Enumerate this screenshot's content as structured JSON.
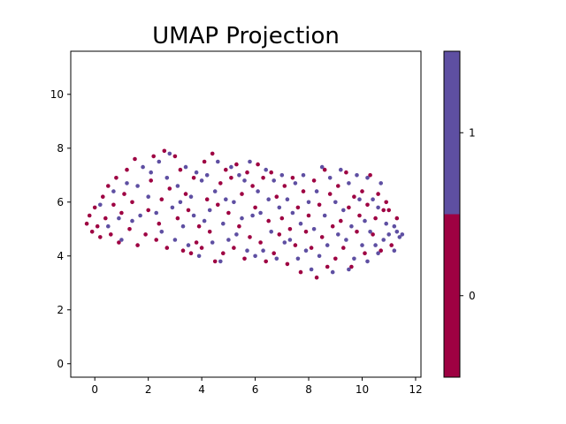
{
  "chart_data": {
    "type": "scatter",
    "title": "UMAP Projection",
    "xlabel": "",
    "ylabel": "",
    "xlim": [
      -0.9,
      12.2
    ],
    "ylim": [
      -0.5,
      11.6
    ],
    "xticks": [
      0,
      2,
      4,
      6,
      8,
      10,
      12
    ],
    "yticks": [
      0,
      2,
      4,
      6,
      8,
      10
    ],
    "grid": false,
    "marker_size": 2.3,
    "colors": {
      "0": "#9e0142",
      "1": "#5e4fa2"
    },
    "colorbar": {
      "ticks": [
        "0",
        "1"
      ],
      "range": [
        -0.5,
        1.5
      ],
      "bands": [
        {
          "label": "0",
          "from": -0.5,
          "to": 0.5,
          "color": "#9e0142"
        },
        {
          "label": "1",
          "from": 0.5,
          "to": 1.5,
          "color": "#5e4fa2"
        }
      ]
    },
    "points": [
      [
        -0.3,
        5.2,
        0
      ],
      [
        -0.2,
        5.5,
        0
      ],
      [
        -0.1,
        4.9,
        0
      ],
      [
        0.0,
        5.8,
        0
      ],
      [
        0.1,
        5.1,
        0
      ],
      [
        0.2,
        4.7,
        0
      ],
      [
        0.3,
        6.2,
        0
      ],
      [
        0.4,
        5.4,
        0
      ],
      [
        0.5,
        6.6,
        0
      ],
      [
        0.6,
        4.8,
        0
      ],
      [
        0.7,
        5.9,
        0
      ],
      [
        0.8,
        6.9,
        0
      ],
      [
        0.9,
        4.5,
        0
      ],
      [
        1.0,
        5.6,
        0
      ],
      [
        1.1,
        6.3,
        0
      ],
      [
        1.2,
        7.2,
        0
      ],
      [
        1.3,
        5.0,
        0
      ],
      [
        1.4,
        6.0,
        0
      ],
      [
        1.5,
        7.6,
        0
      ],
      [
        1.6,
        4.4,
        0
      ],
      [
        0.2,
        5.9,
        1
      ],
      [
        0.5,
        5.1,
        1
      ],
      [
        0.7,
        6.4,
        1
      ],
      [
        0.9,
        5.4,
        1
      ],
      [
        1.0,
        4.6,
        1
      ],
      [
        1.2,
        6.7,
        1
      ],
      [
        1.4,
        5.3,
        1
      ],
      [
        1.6,
        6.6,
        1
      ],
      [
        1.7,
        5.5,
        1
      ],
      [
        1.8,
        7.3,
        1
      ],
      [
        1.9,
        4.8,
        0
      ],
      [
        2.0,
        5.7,
        0
      ],
      [
        2.1,
        6.8,
        0
      ],
      [
        2.2,
        7.7,
        0
      ],
      [
        2.3,
        4.6,
        0
      ],
      [
        2.4,
        5.2,
        0
      ],
      [
        2.5,
        6.1,
        0
      ],
      [
        2.6,
        7.9,
        0
      ],
      [
        2.7,
        4.3,
        0
      ],
      [
        2.8,
        6.5,
        0
      ],
      [
        2.0,
        6.2,
        1
      ],
      [
        2.1,
        7.1,
        1
      ],
      [
        2.3,
        5.6,
        1
      ],
      [
        2.4,
        7.5,
        1
      ],
      [
        2.5,
        4.9,
        1
      ],
      [
        2.7,
        6.9,
        1
      ],
      [
        2.8,
        7.8,
        1
      ],
      [
        2.9,
        5.8,
        1
      ],
      [
        3.0,
        4.6,
        1
      ],
      [
        3.1,
        6.6,
        1
      ],
      [
        3.0,
        7.7,
        0
      ],
      [
        3.1,
        5.4,
        0
      ],
      [
        3.2,
        7.2,
        0
      ],
      [
        3.3,
        4.2,
        0
      ],
      [
        3.4,
        6.3,
        0
      ],
      [
        3.5,
        5.7,
        0
      ],
      [
        3.6,
        4.1,
        0
      ],
      [
        3.7,
        6.9,
        0
      ],
      [
        3.8,
        4.5,
        0
      ],
      [
        3.9,
        5.1,
        0
      ],
      [
        3.2,
        6.0,
        1
      ],
      [
        3.3,
        5.1,
        1
      ],
      [
        3.4,
        7.3,
        1
      ],
      [
        3.5,
        4.4,
        1
      ],
      [
        3.6,
        6.2,
        1
      ],
      [
        3.7,
        5.5,
        1
      ],
      [
        3.8,
        7.1,
        1
      ],
      [
        3.9,
        4.0,
        1
      ],
      [
        4.0,
        6.8,
        1
      ],
      [
        4.1,
        5.3,
        1
      ],
      [
        4.0,
        4.3,
        0
      ],
      [
        4.1,
        7.5,
        0
      ],
      [
        4.2,
        6.1,
        0
      ],
      [
        4.3,
        4.9,
        0
      ],
      [
        4.4,
        7.8,
        0
      ],
      [
        4.5,
        3.8,
        0
      ],
      [
        4.6,
        5.9,
        0
      ],
      [
        4.7,
        6.7,
        0
      ],
      [
        4.8,
        4.1,
        0
      ],
      [
        4.9,
        7.2,
        0
      ],
      [
        4.2,
        7.0,
        1
      ],
      [
        4.3,
        5.7,
        1
      ],
      [
        4.4,
        4.5,
        1
      ],
      [
        4.5,
        6.4,
        1
      ],
      [
        4.6,
        7.5,
        1
      ],
      [
        4.7,
        3.8,
        1
      ],
      [
        4.8,
        5.2,
        1
      ],
      [
        4.9,
        6.1,
        1
      ],
      [
        5.0,
        4.6,
        1
      ],
      [
        5.1,
        7.3,
        1
      ],
      [
        5.0,
        5.6,
        0
      ],
      [
        5.1,
        6.9,
        0
      ],
      [
        5.2,
        4.3,
        0
      ],
      [
        5.3,
        7.4,
        0
      ],
      [
        5.4,
        5.1,
        0
      ],
      [
        5.5,
        6.3,
        0
      ],
      [
        5.6,
        3.9,
        0
      ],
      [
        5.7,
        7.1,
        0
      ],
      [
        5.8,
        4.7,
        0
      ],
      [
        5.9,
        6.6,
        0
      ],
      [
        5.2,
        6.0,
        1
      ],
      [
        5.3,
        4.8,
        1
      ],
      [
        5.4,
        7.0,
        1
      ],
      [
        5.5,
        5.4,
        1
      ],
      [
        5.6,
        6.8,
        1
      ],
      [
        5.7,
        4.2,
        1
      ],
      [
        5.8,
        7.5,
        1
      ],
      [
        5.9,
        5.5,
        1
      ],
      [
        6.0,
        4.0,
        1
      ],
      [
        6.1,
        6.4,
        1
      ],
      [
        6.0,
        5.8,
        0
      ],
      [
        6.1,
        7.4,
        0
      ],
      [
        6.2,
        4.5,
        0
      ],
      [
        6.3,
        6.9,
        0
      ],
      [
        6.4,
        3.8,
        0
      ],
      [
        6.5,
        5.3,
        0
      ],
      [
        6.6,
        7.1,
        0
      ],
      [
        6.7,
        4.1,
        0
      ],
      [
        6.8,
        6.2,
        0
      ],
      [
        6.9,
        4.8,
        0
      ],
      [
        6.2,
        5.6,
        1
      ],
      [
        6.3,
        4.2,
        1
      ],
      [
        6.4,
        7.2,
        1
      ],
      [
        6.5,
        6.1,
        1
      ],
      [
        6.6,
        4.9,
        1
      ],
      [
        6.7,
        6.8,
        1
      ],
      [
        6.8,
        3.9,
        1
      ],
      [
        6.9,
        5.8,
        1
      ],
      [
        7.0,
        7.0,
        1
      ],
      [
        7.1,
        4.5,
        1
      ],
      [
        7.0,
        5.4,
        0
      ],
      [
        7.1,
        6.6,
        0
      ],
      [
        7.2,
        3.7,
        0
      ],
      [
        7.3,
        5.0,
        0
      ],
      [
        7.4,
        6.9,
        0
      ],
      [
        7.5,
        4.4,
        0
      ],
      [
        7.6,
        5.8,
        0
      ],
      [
        7.7,
        3.4,
        0
      ],
      [
        7.8,
        6.4,
        0
      ],
      [
        7.9,
        4.9,
        0
      ],
      [
        7.2,
        6.1,
        1
      ],
      [
        7.3,
        4.6,
        1
      ],
      [
        7.4,
        5.6,
        1
      ],
      [
        7.5,
        6.7,
        1
      ],
      [
        7.6,
        3.9,
        1
      ],
      [
        7.7,
        5.2,
        1
      ],
      [
        7.8,
        7.0,
        1
      ],
      [
        7.9,
        4.2,
        1
      ],
      [
        8.0,
        6.0,
        1
      ],
      [
        8.1,
        3.5,
        1
      ],
      [
        8.0,
        5.5,
        0
      ],
      [
        8.1,
        4.3,
        0
      ],
      [
        8.2,
        6.8,
        0
      ],
      [
        8.3,
        3.2,
        0
      ],
      [
        8.4,
        5.9,
        0
      ],
      [
        8.5,
        4.7,
        0
      ],
      [
        8.6,
        7.2,
        0
      ],
      [
        8.7,
        3.6,
        0
      ],
      [
        8.8,
        6.3,
        0
      ],
      [
        8.9,
        5.1,
        0
      ],
      [
        8.2,
        5.0,
        1
      ],
      [
        8.3,
        6.4,
        1
      ],
      [
        8.4,
        4.0,
        1
      ],
      [
        8.5,
        7.3,
        1
      ],
      [
        8.6,
        5.5,
        1
      ],
      [
        8.7,
        4.4,
        1
      ],
      [
        8.8,
        6.9,
        1
      ],
      [
        8.9,
        3.4,
        1
      ],
      [
        9.0,
        6.0,
        1
      ],
      [
        9.1,
        4.8,
        1
      ],
      [
        9.0,
        3.9,
        0
      ],
      [
        9.1,
        6.6,
        0
      ],
      [
        9.2,
        5.3,
        0
      ],
      [
        9.3,
        4.3,
        0
      ],
      [
        9.4,
        7.1,
        0
      ],
      [
        9.5,
        5.8,
        0
      ],
      [
        9.6,
        3.6,
        0
      ],
      [
        9.7,
        6.2,
        0
      ],
      [
        9.8,
        4.9,
        0
      ],
      [
        9.9,
        5.5,
        0
      ],
      [
        9.2,
        7.2,
        1
      ],
      [
        9.3,
        5.7,
        1
      ],
      [
        9.4,
        4.6,
        1
      ],
      [
        9.5,
        6.7,
        1
      ],
      [
        9.6,
        5.1,
        1
      ],
      [
        9.7,
        3.9,
        1
      ],
      [
        9.8,
        7.0,
        1
      ],
      [
        9.9,
        6.1,
        1
      ],
      [
        10.0,
        4.4,
        1
      ],
      [
        10.1,
        5.3,
        1
      ],
      [
        10.0,
        6.4,
        0
      ],
      [
        10.1,
        4.1,
        0
      ],
      [
        10.2,
        5.9,
        0
      ],
      [
        10.3,
        7.0,
        0
      ],
      [
        10.4,
        4.8,
        0
      ],
      [
        10.5,
        5.4,
        0
      ],
      [
        10.6,
        6.3,
        0
      ],
      [
        10.7,
        4.2,
        0
      ],
      [
        10.8,
        5.7,
        0
      ],
      [
        10.9,
        6.0,
        0
      ],
      [
        10.2,
        6.9,
        1
      ],
      [
        10.3,
        4.9,
        1
      ],
      [
        10.4,
        6.1,
        1
      ],
      [
        10.5,
        4.4,
        1
      ],
      [
        10.6,
        5.8,
        1
      ],
      [
        10.7,
        6.7,
        1
      ],
      [
        10.8,
        4.6,
        1
      ],
      [
        10.9,
        5.2,
        1
      ],
      [
        11.0,
        4.8,
        1
      ],
      [
        11.2,
        5.1,
        1
      ],
      [
        11.0,
        5.7,
        0
      ],
      [
        11.1,
        4.4,
        0
      ],
      [
        11.3,
        4.9,
        1
      ],
      [
        11.4,
        4.7,
        1
      ],
      [
        11.5,
        4.8,
        1
      ],
      [
        11.2,
        4.2,
        1
      ],
      [
        11.3,
        5.4,
        0
      ],
      [
        10.6,
        4.1,
        1
      ],
      [
        10.2,
        3.8,
        1
      ],
      [
        9.5,
        3.5,
        1
      ]
    ]
  }
}
